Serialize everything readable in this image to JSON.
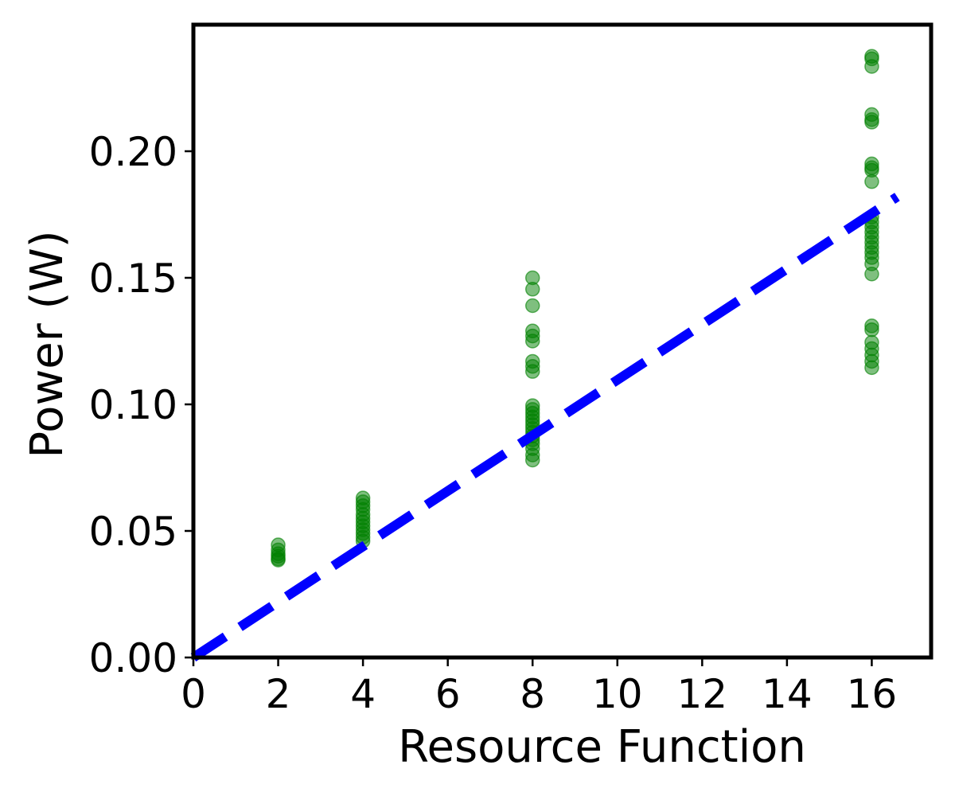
{
  "chart_data": {
    "type": "scatter",
    "title": "",
    "xlabel": "Resource Function",
    "ylabel": "Power (W)",
    "xlim": [
      0,
      17.4
    ],
    "ylim": [
      0,
      0.25
    ],
    "x_ticks": [
      0,
      2,
      4,
      6,
      8,
      10,
      12,
      14,
      16
    ],
    "x_tick_labels": [
      "0",
      "2",
      "4",
      "6",
      "8",
      "10",
      "12",
      "14",
      "16"
    ],
    "y_ticks": [
      0,
      0.05,
      0.1,
      0.15,
      0.2
    ],
    "y_tick_labels": [
      "0.00",
      "0.05",
      "0.10",
      "0.15",
      "0.20"
    ],
    "grid": false,
    "legend": "none",
    "colors": {
      "points": "#008000",
      "trend_line": "#0000ff",
      "axes": "#000000"
    },
    "series": [
      {
        "kind": "scatter",
        "points": [
          [
            2,
            0.0445
          ],
          [
            2,
            0.0425
          ],
          [
            2,
            0.041
          ],
          [
            2,
            0.04
          ],
          [
            2,
            0.039
          ],
          [
            2,
            0.0385
          ],
          [
            4,
            0.063
          ],
          [
            4,
            0.0615
          ],
          [
            4,
            0.06
          ],
          [
            4,
            0.0585
          ],
          [
            4,
            0.0565
          ],
          [
            4,
            0.055
          ],
          [
            4,
            0.0535
          ],
          [
            4,
            0.052
          ],
          [
            4,
            0.0505
          ],
          [
            4,
            0.049
          ],
          [
            4,
            0.0475
          ],
          [
            4,
            0.046
          ],
          [
            8,
            0.15
          ],
          [
            8,
            0.1455
          ],
          [
            8,
            0.139
          ],
          [
            8,
            0.129
          ],
          [
            8,
            0.127
          ],
          [
            8,
            0.125
          ],
          [
            8,
            0.117
          ],
          [
            8,
            0.115
          ],
          [
            8,
            0.113
          ],
          [
            8,
            0.0995
          ],
          [
            8,
            0.098
          ],
          [
            8,
            0.0965
          ],
          [
            8,
            0.095
          ],
          [
            8,
            0.0935
          ],
          [
            8,
            0.092
          ],
          [
            8,
            0.0905
          ],
          [
            8,
            0.089
          ],
          [
            8,
            0.0875
          ],
          [
            8,
            0.086
          ],
          [
            8,
            0.0845
          ],
          [
            8,
            0.0825
          ],
          [
            8,
            0.08
          ],
          [
            8,
            0.078
          ],
          [
            16,
            0.2375
          ],
          [
            16,
            0.2365
          ],
          [
            16,
            0.2335
          ],
          [
            16,
            0.2145
          ],
          [
            16,
            0.2125
          ],
          [
            16,
            0.2115
          ],
          [
            16,
            0.195
          ],
          [
            16,
            0.1935
          ],
          [
            16,
            0.1925
          ],
          [
            16,
            0.188
          ],
          [
            16,
            0.174
          ],
          [
            16,
            0.172
          ],
          [
            16,
            0.17
          ],
          [
            16,
            0.168
          ],
          [
            16,
            0.166
          ],
          [
            16,
            0.164
          ],
          [
            16,
            0.162
          ],
          [
            16,
            0.16
          ],
          [
            16,
            0.158
          ],
          [
            16,
            0.1555
          ],
          [
            16,
            0.1515
          ],
          [
            16,
            0.131
          ],
          [
            16,
            0.1295
          ],
          [
            16,
            0.1245
          ],
          [
            16,
            0.122
          ],
          [
            16,
            0.1195
          ],
          [
            16,
            0.117
          ],
          [
            16,
            0.1145
          ]
        ]
      },
      {
        "kind": "line",
        "style": "dashed",
        "points": [
          [
            0,
            0.0
          ],
          [
            16.6,
            0.182
          ]
        ]
      }
    ]
  }
}
